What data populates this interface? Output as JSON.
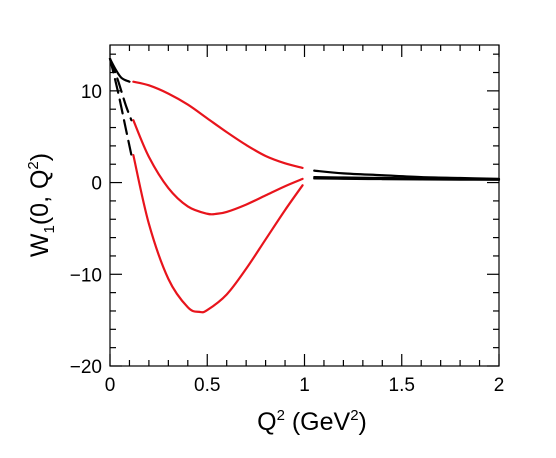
{
  "chart_data": {
    "type": "line",
    "title": "",
    "xlabel": {
      "base": "Q",
      "sup": "2",
      "mid": " (GeV",
      "sup2": "2",
      "end": ")"
    },
    "ylabel": {
      "base": "W",
      "sub": "1",
      "mid": "(0, Q",
      "sup": "2",
      "end": ")"
    },
    "xlim": [
      0,
      2
    ],
    "ylim": [
      -20,
      15
    ],
    "xticks": [
      {
        "value": 0,
        "label": "0"
      },
      {
        "value": 0.5,
        "label": "0.5"
      },
      {
        "value": 1,
        "label": "1"
      },
      {
        "value": 1.5,
        "label": "1.5"
      },
      {
        "value": 2,
        "label": "2"
      }
    ],
    "yticks": [
      {
        "value": -20,
        "label": "−20"
      },
      {
        "value": -10,
        "label": "−10"
      },
      {
        "value": 0,
        "label": "0"
      },
      {
        "value": 10,
        "label": "10"
      }
    ],
    "grid": false,
    "legend": "none",
    "series": [
      {
        "color": "#000000",
        "style": "solid",
        "x": [
          0,
          0.03,
          0.06,
          0.1
        ],
        "y": [
          13.5,
          12.3,
          11.4,
          11.0
        ]
      },
      {
        "color": "#000000",
        "style": "dashed",
        "x": [
          0,
          0.04,
          0.08,
          0.11
        ],
        "y": [
          13.5,
          11.2,
          8.5,
          6.8
        ]
      },
      {
        "color": "#000000",
        "style": "dashed",
        "x": [
          0,
          0.04,
          0.08,
          0.11
        ],
        "y": [
          13.5,
          10.0,
          6.0,
          3.0
        ]
      },
      {
        "color": "#e8141c",
        "style": "solid",
        "x": [
          0.12,
          0.2,
          0.3,
          0.4,
          0.5,
          0.6,
          0.7,
          0.8,
          0.9,
          0.99
        ],
        "y": [
          11.0,
          10.6,
          9.7,
          8.5,
          7.0,
          5.5,
          4.1,
          2.9,
          2.1,
          1.6
        ]
      },
      {
        "color": "#e8141c",
        "style": "solid",
        "x": [
          0.12,
          0.2,
          0.3,
          0.4,
          0.5,
          0.55,
          0.6,
          0.7,
          0.8,
          0.9,
          0.99
        ],
        "y": [
          6.8,
          2.8,
          -0.6,
          -2.6,
          -3.4,
          -3.4,
          -3.2,
          -2.4,
          -1.4,
          -0.4,
          0.4
        ]
      },
      {
        "color": "#e8141c",
        "style": "solid",
        "x": [
          0.12,
          0.2,
          0.3,
          0.4,
          0.46,
          0.5,
          0.6,
          0.7,
          0.8,
          0.9,
          0.99
        ],
        "y": [
          3.0,
          -4.5,
          -10.5,
          -13.6,
          -14.1,
          -13.9,
          -12.2,
          -9.4,
          -6.2,
          -3.0,
          -0.3
        ]
      },
      {
        "color": "#000000",
        "style": "solid",
        "x": [
          1.05,
          1.2,
          1.4,
          1.6,
          1.8,
          2.0
        ],
        "y": [
          1.3,
          1.0,
          0.8,
          0.6,
          0.5,
          0.4
        ]
      },
      {
        "color": "#000000",
        "style": "solid",
        "x": [
          1.05,
          1.2,
          1.4,
          1.6,
          1.8,
          2.0
        ],
        "y": [
          0.6,
          0.55,
          0.5,
          0.45,
          0.4,
          0.35
        ]
      },
      {
        "color": "#000000",
        "style": "solid",
        "x": [
          1.05,
          1.2,
          1.4,
          1.6,
          1.8,
          2.0
        ],
        "y": [
          0.45,
          0.42,
          0.38,
          0.35,
          0.32,
          0.3
        ]
      }
    ]
  }
}
